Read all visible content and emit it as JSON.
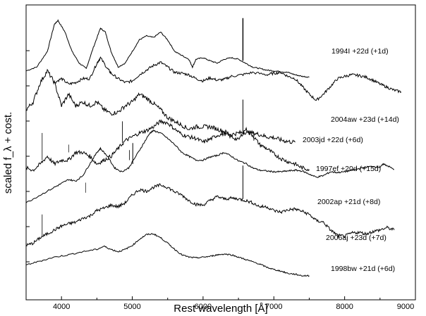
{
  "chart_data": {
    "type": "line",
    "xlabel": "Rest wavelength [Å]",
    "ylabel": "scaled f_λ + cost.",
    "xlim": [
      3500,
      9000
    ],
    "ylim": [
      -1,
      37
    ],
    "xticks": [
      4000,
      5000,
      6000,
      7000,
      8000,
      9000
    ],
    "grid": false,
    "series": [
      {
        "name": "1994I +22d (+1d)",
        "color": "#000000",
        "points": [
          [
            3500,
            28.5
          ],
          [
            3650,
            29.0
          ],
          [
            3800,
            31.0
          ],
          [
            3900,
            34.5
          ],
          [
            3950,
            35.0
          ],
          [
            4050,
            33.5
          ],
          [
            4150,
            31.0
          ],
          [
            4250,
            29.5
          ],
          [
            4350,
            28.8
          ],
          [
            4450,
            31.5
          ],
          [
            4550,
            34.0
          ],
          [
            4620,
            33.5
          ],
          [
            4700,
            31.0
          ],
          [
            4800,
            29.0
          ],
          [
            4900,
            29.5
          ],
          [
            5000,
            31.0
          ],
          [
            5100,
            32.5
          ],
          [
            5200,
            33.0
          ],
          [
            5300,
            32.8
          ],
          [
            5400,
            33.5
          ],
          [
            5500,
            32.5
          ],
          [
            5600,
            31.0
          ],
          [
            5700,
            30.5
          ],
          [
            5800,
            30.0
          ],
          [
            5850,
            29.0
          ],
          [
            5900,
            30.0
          ],
          [
            6000,
            30.2
          ],
          [
            6100,
            29.8
          ],
          [
            6200,
            29.5
          ],
          [
            6300,
            30.0
          ],
          [
            6400,
            30.2
          ],
          [
            6500,
            30.0
          ],
          [
            6600,
            29.5
          ],
          [
            6700,
            29.0
          ],
          [
            6800,
            28.8
          ],
          [
            6900,
            28.6
          ],
          [
            7000,
            28.5
          ],
          [
            7100,
            28.4
          ],
          [
            7200,
            28.3
          ],
          [
            7300,
            28.0
          ],
          [
            7400,
            27.8
          ],
          [
            7500,
            27.7
          ]
        ],
        "label": "1994I +22d (+1d)"
      },
      {
        "name": "2004aw +23d (+14d)",
        "color": "#000000",
        "points": [
          [
            3900,
            27.0
          ],
          [
            4000,
            27.5
          ],
          [
            4100,
            26.8
          ],
          [
            4200,
            27.0
          ],
          [
            4300,
            27.5
          ],
          [
            4400,
            27.5
          ],
          [
            4500,
            29.5
          ],
          [
            4550,
            30.2
          ],
          [
            4650,
            28.8
          ],
          [
            4700,
            28.2
          ],
          [
            4800,
            27.5
          ],
          [
            4900,
            27.0
          ],
          [
            5000,
            27.2
          ],
          [
            5100,
            28.0
          ],
          [
            5200,
            28.6
          ],
          [
            5300,
            29.2
          ],
          [
            5400,
            29.6
          ],
          [
            5500,
            29.0
          ],
          [
            5600,
            28.3
          ],
          [
            5700,
            28.2
          ],
          [
            5800,
            28.0
          ],
          [
            5900,
            27.5
          ],
          [
            6000,
            27.2
          ],
          [
            6100,
            27.6
          ],
          [
            6200,
            27.3
          ],
          [
            6300,
            27.4
          ],
          [
            6400,
            27.8
          ],
          [
            6550,
            28.0
          ],
          [
            6700,
            28.3
          ],
          [
            6900,
            28.0
          ],
          [
            7000,
            28.2
          ],
          [
            7100,
            28.3
          ],
          [
            7200,
            27.8
          ],
          [
            7300,
            27.5
          ],
          [
            7400,
            26.5
          ],
          [
            7500,
            25.5
          ],
          [
            7600,
            24.7
          ],
          [
            7700,
            25.5
          ],
          [
            7800,
            26.5
          ],
          [
            7900,
            27.5
          ],
          [
            8000,
            27.8
          ],
          [
            8100,
            28.0
          ],
          [
            8200,
            27.9
          ],
          [
            8300,
            27.7
          ],
          [
            8400,
            27.3
          ],
          [
            8500,
            26.8
          ],
          [
            8600,
            26.4
          ],
          [
            8700,
            26.0
          ],
          [
            8800,
            25.8
          ]
        ]
      },
      {
        "name": "2003jd +22d (+6d)",
        "color": "#000000",
        "points": [
          [
            3500,
            23.5
          ],
          [
            3600,
            24.5
          ],
          [
            3700,
            27.0
          ],
          [
            3800,
            28.5
          ],
          [
            3900,
            27.0
          ],
          [
            4000,
            24.0
          ],
          [
            4100,
            25.5
          ],
          [
            4200,
            24.0
          ],
          [
            4300,
            24.5
          ],
          [
            4400,
            24.0
          ],
          [
            4500,
            24.5
          ],
          [
            4600,
            23.5
          ],
          [
            4700,
            23.0
          ],
          [
            4800,
            23.2
          ],
          [
            4900,
            24.0
          ],
          [
            5000,
            24.5
          ],
          [
            5100,
            25.5
          ],
          [
            5200,
            25.0
          ],
          [
            5300,
            24.3
          ],
          [
            5400,
            23.5
          ],
          [
            5500,
            22.5
          ],
          [
            5600,
            22.0
          ],
          [
            5700,
            21.5
          ],
          [
            5800,
            21.0
          ],
          [
            5900,
            21.3
          ],
          [
            6000,
            21.3
          ],
          [
            6100,
            21.3
          ],
          [
            6200,
            21.0
          ],
          [
            6300,
            20.7
          ],
          [
            6400,
            20.3
          ],
          [
            6500,
            20.5
          ],
          [
            6600,
            20.6
          ],
          [
            6700,
            20.5
          ],
          [
            6800,
            20.3
          ],
          [
            6900,
            20.0
          ],
          [
            7000,
            19.9
          ],
          [
            7100,
            19.6
          ],
          [
            7200,
            19.4
          ],
          [
            7300,
            19.3
          ]
        ]
      },
      {
        "name": "1997ef +20d (+15d)",
        "color": "#000000",
        "points": [
          [
            3500,
            16.0
          ],
          [
            3600,
            15.7
          ],
          [
            3700,
            16.5
          ],
          [
            3800,
            17.5
          ],
          [
            3900,
            16.5
          ],
          [
            4000,
            17.0
          ],
          [
            4100,
            17.0
          ],
          [
            4200,
            18.0
          ],
          [
            4300,
            18.0
          ],
          [
            4400,
            17.5
          ],
          [
            4500,
            16.5
          ],
          [
            4600,
            17.0
          ],
          [
            4700,
            17.5
          ],
          [
            4800,
            18.5
          ],
          [
            4900,
            19.5
          ],
          [
            5000,
            20.0
          ],
          [
            5100,
            20.5
          ],
          [
            5200,
            20.8
          ],
          [
            5300,
            21.3
          ],
          [
            5400,
            22.0
          ],
          [
            5500,
            21.8
          ],
          [
            5600,
            21.0
          ],
          [
            5700,
            20.3
          ],
          [
            5800,
            20.0
          ],
          [
            5900,
            19.8
          ],
          [
            6000,
            19.3
          ],
          [
            6100,
            19.7
          ],
          [
            6200,
            20.2
          ],
          [
            6300,
            20.4
          ],
          [
            6400,
            20.0
          ],
          [
            6500,
            19.6
          ],
          [
            6600,
            21.0
          ],
          [
            6700,
            20.2
          ],
          [
            6800,
            19.0
          ],
          [
            6900,
            18.5
          ],
          [
            7000,
            17.8
          ],
          [
            7100,
            17.2
          ],
          [
            7200,
            16.8
          ],
          [
            7300,
            16.5
          ],
          [
            7400,
            16.0
          ],
          [
            7500,
            15.8
          ]
        ]
      },
      {
        "name": "2002ap +21d (+8d)",
        "color": "#000000",
        "points": [
          [
            3500,
            11.5
          ],
          [
            3700,
            12.5
          ],
          [
            3900,
            13.5
          ],
          [
            4000,
            14.0
          ],
          [
            4100,
            14.5
          ],
          [
            4200,
            14.3
          ],
          [
            4300,
            15.0
          ],
          [
            4400,
            16.5
          ],
          [
            4500,
            18.0
          ],
          [
            4550,
            18.5
          ],
          [
            4650,
            17.5
          ],
          [
            4750,
            16.0
          ],
          [
            4850,
            15.5
          ],
          [
            4950,
            16.0
          ],
          [
            5050,
            17.5
          ],
          [
            5150,
            19.0
          ],
          [
            5250,
            20.5
          ],
          [
            5300,
            20.8
          ],
          [
            5400,
            20.5
          ],
          [
            5500,
            19.8
          ],
          [
            5600,
            19.0
          ],
          [
            5700,
            18.0
          ],
          [
            5800,
            17.5
          ],
          [
            5900,
            17.0
          ],
          [
            6000,
            17.0
          ],
          [
            6100,
            17.4
          ],
          [
            6200,
            17.6
          ],
          [
            6300,
            18.0
          ],
          [
            6400,
            17.5
          ],
          [
            6500,
            16.9
          ],
          [
            6600,
            16.6
          ],
          [
            6700,
            16.0
          ],
          [
            6800,
            15.7
          ],
          [
            6900,
            15.6
          ],
          [
            7000,
            15.5
          ],
          [
            7100,
            15.5
          ],
          [
            7200,
            15.6
          ],
          [
            7300,
            15.7
          ],
          [
            7400,
            15.6
          ],
          [
            7500,
            15.2
          ],
          [
            7600,
            14.8
          ],
          [
            7700,
            15.0
          ],
          [
            7800,
            15.5
          ],
          [
            7900,
            15.4
          ],
          [
            8000,
            15.5
          ],
          [
            8100,
            15.7
          ],
          [
            8200,
            15.9
          ],
          [
            8300,
            16.1
          ],
          [
            8400,
            16.2
          ],
          [
            8500,
            16.1
          ],
          [
            8550,
            16.5
          ],
          [
            8600,
            16.3
          ],
          [
            8700,
            15.8
          ]
        ]
      },
      {
        "name": "2006aj +23d (+7d)",
        "color": "#000000",
        "points": [
          [
            3500,
            6.0
          ],
          [
            3600,
            6.3
          ],
          [
            3700,
            7.0
          ],
          [
            3800,
            7.5
          ],
          [
            3900,
            8.0
          ],
          [
            4000,
            8.5
          ],
          [
            4100,
            8.8
          ],
          [
            4200,
            9.0
          ],
          [
            4300,
            9.5
          ],
          [
            4400,
            9.8
          ],
          [
            4500,
            10.5
          ],
          [
            4600,
            10.8
          ],
          [
            4700,
            11.2
          ],
          [
            4800,
            11.0
          ],
          [
            4900,
            11.5
          ],
          [
            5000,
            12.5
          ],
          [
            5100,
            13.2
          ],
          [
            5200,
            13.0
          ],
          [
            5300,
            13.5
          ],
          [
            5400,
            13.8
          ],
          [
            5500,
            13.5
          ],
          [
            5600,
            12.9
          ],
          [
            5700,
            12.5
          ],
          [
            5800,
            11.8
          ],
          [
            5900,
            11.3
          ],
          [
            6000,
            11.2
          ],
          [
            6100,
            11.8
          ],
          [
            6200,
            12.3
          ],
          [
            6300,
            12.0
          ],
          [
            6400,
            12.1
          ],
          [
            6500,
            12.0
          ],
          [
            6600,
            11.8
          ],
          [
            6700,
            11.5
          ],
          [
            6800,
            11.0
          ],
          [
            6900,
            11.0
          ],
          [
            7000,
            10.5
          ],
          [
            7100,
            10.3
          ],
          [
            7200,
            10.6
          ],
          [
            7300,
            10.7
          ],
          [
            7400,
            10.4
          ],
          [
            7500,
            10.0
          ],
          [
            7600,
            9.2
          ],
          [
            7700,
            9.0
          ],
          [
            7800,
            8.0
          ],
          [
            7900,
            7.3
          ],
          [
            8000,
            7.2
          ],
          [
            8100,
            7.6
          ],
          [
            8200,
            7.7
          ],
          [
            8300,
            7.5
          ],
          [
            8400,
            7.8
          ],
          [
            8500,
            8.0
          ],
          [
            8600,
            8.3
          ],
          [
            8700,
            8.0
          ]
        ]
      },
      {
        "name": "1998bw +21d (+6d)",
        "color": "#000000",
        "points": [
          [
            3500,
            3.5
          ],
          [
            3700,
            4.0
          ],
          [
            3900,
            4.5
          ],
          [
            4100,
            4.8
          ],
          [
            4300,
            5.2
          ],
          [
            4500,
            5.5
          ],
          [
            4600,
            5.9
          ],
          [
            4700,
            5.5
          ],
          [
            4800,
            5.2
          ],
          [
            4900,
            5.5
          ],
          [
            5000,
            6.0
          ],
          [
            5100,
            6.8
          ],
          [
            5200,
            7.4
          ],
          [
            5300,
            7.5
          ],
          [
            5400,
            7.0
          ],
          [
            5500,
            6.3
          ],
          [
            5600,
            5.5
          ],
          [
            5700,
            4.8
          ],
          [
            5800,
            4.5
          ],
          [
            5900,
            4.4
          ],
          [
            6000,
            4.5
          ],
          [
            6100,
            4.6
          ],
          [
            6200,
            4.8
          ],
          [
            6300,
            4.9
          ],
          [
            6400,
            4.8
          ],
          [
            6500,
            4.5
          ],
          [
            6600,
            4.2
          ],
          [
            6700,
            3.9
          ],
          [
            6800,
            3.6
          ],
          [
            6900,
            3.2
          ],
          [
            7000,
            2.9
          ],
          [
            7100,
            2.7
          ],
          [
            7200,
            2.4
          ],
          [
            7300,
            2.3
          ],
          [
            7400,
            2.1
          ],
          [
            7500,
            2.1
          ]
        ]
      }
    ]
  }
}
